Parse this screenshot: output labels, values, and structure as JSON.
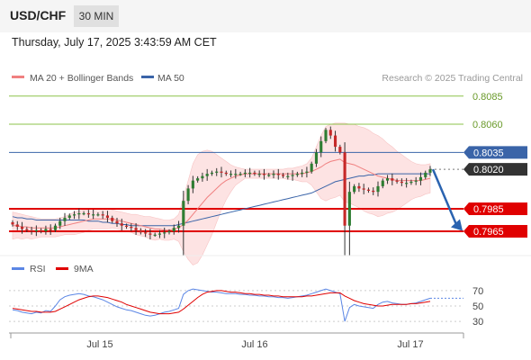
{
  "header": {
    "symbol": "USD/CHF",
    "interval": "30 MIN"
  },
  "datetime": "Thursday, July 17, 2025 3:43:59 AM CET",
  "legend": {
    "ma20_label": "MA 20 + Bollinger Bands",
    "ma50_label": "MA 50",
    "watermark": "Research © 2025 Trading Central",
    "rsi_label": "RSI",
    "rsi_ma_label": "9MA"
  },
  "colors": {
    "ma20": "#f08080",
    "bollinger_fill": "#fde3e3",
    "ma50": "#3a64a8",
    "resistance_green": "#8bc34a",
    "pivot_blue": "#3a64a8",
    "support_red": "#e00000",
    "current_badge": "#333333",
    "arrow": "#2a63b0",
    "rsi": "#5b86e5",
    "rsi_ma": "#e00000",
    "candle_up": "#2e7d32",
    "candle_down": "#c62828"
  },
  "chart_data": [
    {
      "type": "candlestick",
      "x_labels": [
        "Jul 15",
        "Jul 16",
        "Jul 17"
      ],
      "ylim": [
        0.7953,
        0.8092
      ],
      "current_price": 0.802,
      "levels": [
        {
          "value": 0.8085,
          "label": "0.8085",
          "kind": "resistance"
        },
        {
          "value": 0.806,
          "label": "0.8060",
          "kind": "resistance"
        },
        {
          "value": 0.8035,
          "label": "0.8035",
          "kind": "pivot"
        },
        {
          "value": 0.802,
          "label": "0.8020",
          "kind": "current"
        },
        {
          "value": 0.7985,
          "label": "0.7985",
          "kind": "support"
        },
        {
          "value": 0.7965,
          "label": "0.7965",
          "kind": "support"
        }
      ],
      "forecast_arrow": {
        "from": 0.802,
        "to": 0.7967
      },
      "close": [
        0.7971,
        0.7969,
        0.7967,
        0.7966,
        0.7965,
        0.7966,
        0.7965,
        0.7967,
        0.7966,
        0.797,
        0.7974,
        0.7977,
        0.7979,
        0.798,
        0.7981,
        0.7981,
        0.798,
        0.798,
        0.798,
        0.7979,
        0.7977,
        0.7974,
        0.7972,
        0.797,
        0.7969,
        0.7968,
        0.7966,
        0.7964,
        0.7963,
        0.7962,
        0.7962,
        0.7963,
        0.7964,
        0.7965,
        0.7968,
        0.797,
        0.7992,
        0.8003,
        0.801,
        0.8012,
        0.8014,
        0.8016,
        0.8017,
        0.8018,
        0.8017,
        0.8016,
        0.8016,
        0.8016,
        0.8016,
        0.8017,
        0.8017,
        0.8016,
        0.8016,
        0.8015,
        0.8015,
        0.8016,
        0.8015,
        0.8014,
        0.8014,
        0.8015,
        0.8016,
        0.8017,
        0.8018,
        0.8025,
        0.8035,
        0.8045,
        0.8055,
        0.805,
        0.804,
        0.8035,
        0.797,
        0.8,
        0.8005,
        0.8003,
        0.8002,
        0.8001,
        0.8,
        0.8005,
        0.801,
        0.8012,
        0.801,
        0.8009,
        0.8008,
        0.8008,
        0.8009,
        0.801,
        0.8013,
        0.8017,
        0.802
      ],
      "ma20": [
        0.797,
        0.797,
        0.7969,
        0.7969,
        0.7968,
        0.7968,
        0.7968,
        0.7968,
        0.7968,
        0.7968,
        0.7969,
        0.797,
        0.7971,
        0.7972,
        0.7973,
        0.7974,
        0.7975,
        0.7976,
        0.7976,
        0.7976,
        0.7976,
        0.7976,
        0.7975,
        0.7974,
        0.7973,
        0.7972,
        0.7971,
        0.797,
        0.7969,
        0.7968,
        0.7967,
        0.7967,
        0.7966,
        0.7966,
        0.7967,
        0.7968,
        0.7971,
        0.7975,
        0.798,
        0.7985,
        0.799,
        0.7995,
        0.7999,
        0.8003,
        0.8007,
        0.801,
        0.8012,
        0.8014,
        0.8015,
        0.8016,
        0.8016,
        0.8016,
        0.8016,
        0.8016,
        0.8016,
        0.8016,
        0.8016,
        0.8016,
        0.8016,
        0.8016,
        0.8016,
        0.8016,
        0.8017,
        0.8018,
        0.802,
        0.8022,
        0.8025,
        0.8027,
        0.8028,
        0.8029,
        0.8026,
        0.8025,
        0.8024,
        0.8022,
        0.802,
        0.8018,
        0.8016,
        0.8014,
        0.8013,
        0.8012,
        0.8011,
        0.801,
        0.801,
        0.801,
        0.801,
        0.801,
        0.801,
        0.8011,
        0.8012
      ],
      "ma50": [
        0.7978,
        0.7977,
        0.7977,
        0.7976,
        0.7976,
        0.7975,
        0.7975,
        0.7975,
        0.7975,
        0.7975,
        0.7975,
        0.7975,
        0.7975,
        0.7975,
        0.7975,
        0.7975,
        0.7974,
        0.7974,
        0.7974,
        0.7973,
        0.7973,
        0.7972,
        0.7972,
        0.7971,
        0.7971,
        0.797,
        0.797,
        0.797,
        0.797,
        0.797,
        0.797,
        0.797,
        0.797,
        0.797,
        0.797,
        0.7971,
        0.7972,
        0.7973,
        0.7974,
        0.7975,
        0.7976,
        0.7977,
        0.7978,
        0.7979,
        0.798,
        0.7981,
        0.7982,
        0.7983,
        0.7984,
        0.7985,
        0.7986,
        0.7987,
        0.7988,
        0.7989,
        0.799,
        0.7991,
        0.7992,
        0.7993,
        0.7994,
        0.7995,
        0.7996,
        0.7997,
        0.7998,
        0.7999,
        0.8001,
        0.8003,
        0.8005,
        0.8007,
        0.8009,
        0.801,
        0.8011,
        0.8012,
        0.8013,
        0.8014,
        0.8014,
        0.8015,
        0.8015,
        0.8016,
        0.8016,
        0.8016,
        0.8016,
        0.8016,
        0.8016,
        0.8016,
        0.8016,
        0.8016,
        0.8016,
        0.8016,
        0.8016
      ],
      "bb_upper": [
        0.7982,
        0.7981,
        0.798,
        0.7979,
        0.7978,
        0.7977,
        0.7976,
        0.7976,
        0.7976,
        0.7976,
        0.7977,
        0.7978,
        0.798,
        0.7982,
        0.7983,
        0.7984,
        0.7984,
        0.7985,
        0.7985,
        0.7985,
        0.7985,
        0.7984,
        0.7983,
        0.7982,
        0.7981,
        0.798,
        0.798,
        0.7979,
        0.7978,
        0.7978,
        0.7977,
        0.7976,
        0.7975,
        0.7975,
        0.7976,
        0.798,
        0.7995,
        0.801,
        0.8025,
        0.8033,
        0.8036,
        0.8037,
        0.8036,
        0.8033,
        0.803,
        0.8027,
        0.8024,
        0.8022,
        0.8021,
        0.802,
        0.802,
        0.802,
        0.802,
        0.802,
        0.802,
        0.802,
        0.802,
        0.802,
        0.8021,
        0.8021,
        0.8022,
        0.8023,
        0.8025,
        0.803,
        0.804,
        0.805,
        0.8058,
        0.806,
        0.8061,
        0.8061,
        0.8061,
        0.806,
        0.806,
        0.8058,
        0.8057,
        0.8055,
        0.8052,
        0.805,
        0.8047,
        0.8043,
        0.804,
        0.8036,
        0.8033,
        0.803,
        0.8027,
        0.8025,
        0.8024,
        0.8024,
        0.8025
      ],
      "bb_lower": [
        0.7958,
        0.7959,
        0.7958,
        0.7959,
        0.7958,
        0.7959,
        0.796,
        0.796,
        0.796,
        0.796,
        0.7961,
        0.7962,
        0.7962,
        0.7962,
        0.7963,
        0.7964,
        0.7966,
        0.7967,
        0.7967,
        0.7967,
        0.7967,
        0.7968,
        0.7967,
        0.7966,
        0.7965,
        0.7964,
        0.7962,
        0.7961,
        0.796,
        0.7958,
        0.7957,
        0.7958,
        0.7957,
        0.7957,
        0.7958,
        0.7956,
        0.7947,
        0.794,
        0.7935,
        0.7937,
        0.7944,
        0.7953,
        0.7962,
        0.7973,
        0.7984,
        0.7993,
        0.8,
        0.8006,
        0.8009,
        0.8012,
        0.8012,
        0.8012,
        0.8012,
        0.8012,
        0.8012,
        0.8012,
        0.8012,
        0.8012,
        0.8011,
        0.8011,
        0.801,
        0.8009,
        0.8009,
        0.8006,
        0.8,
        0.7994,
        0.7992,
        0.7994,
        0.7995,
        0.7997,
        0.7991,
        0.799,
        0.7988,
        0.7986,
        0.7983,
        0.7981,
        0.798,
        0.7978,
        0.7979,
        0.7981,
        0.7982,
        0.7984,
        0.7987,
        0.799,
        0.7993,
        0.7995,
        0.7996,
        0.7998,
        0.7999
      ]
    },
    {
      "type": "line",
      "name": "RSI",
      "ylim": [
        22,
        78
      ],
      "yticks": [
        70,
        50,
        30
      ],
      "rsi": [
        45,
        44,
        42,
        41,
        40,
        42,
        41,
        44,
        43,
        50,
        58,
        62,
        64,
        65,
        66,
        65,
        63,
        62,
        60,
        58,
        55,
        52,
        49,
        47,
        45,
        44,
        42,
        40,
        38,
        37,
        38,
        40,
        42,
        43,
        45,
        47,
        65,
        70,
        72,
        71,
        70,
        69,
        68,
        68,
        67,
        66,
        66,
        66,
        65,
        65,
        64,
        64,
        63,
        63,
        62,
        62,
        61,
        61,
        60,
        61,
        62,
        63,
        64,
        66,
        68,
        70,
        72,
        70,
        68,
        66,
        30,
        48,
        52,
        50,
        49,
        48,
        47,
        52,
        55,
        56,
        54,
        53,
        52,
        52,
        53,
        54,
        56,
        58,
        60
      ],
      "rsi_ma": [
        47,
        46,
        45,
        44,
        43,
        43,
        42,
        42,
        42,
        43,
        46,
        49,
        52,
        55,
        58,
        60,
        62,
        63,
        63,
        62,
        61,
        59,
        57,
        55,
        52,
        50,
        48,
        46,
        44,
        42,
        41,
        40,
        40,
        40,
        41,
        42,
        46,
        51,
        56,
        61,
        65,
        68,
        69,
        70,
        70,
        69,
        68,
        68,
        67,
        66,
        66,
        65,
        65,
        64,
        64,
        63,
        63,
        62,
        62,
        62,
        62,
        62,
        63,
        63,
        64,
        65,
        66,
        67,
        67,
        67,
        63,
        60,
        57,
        55,
        53,
        52,
        51,
        50,
        50,
        51,
        52,
        52,
        52,
        52,
        53,
        53,
        54,
        55,
        56
      ]
    }
  ]
}
